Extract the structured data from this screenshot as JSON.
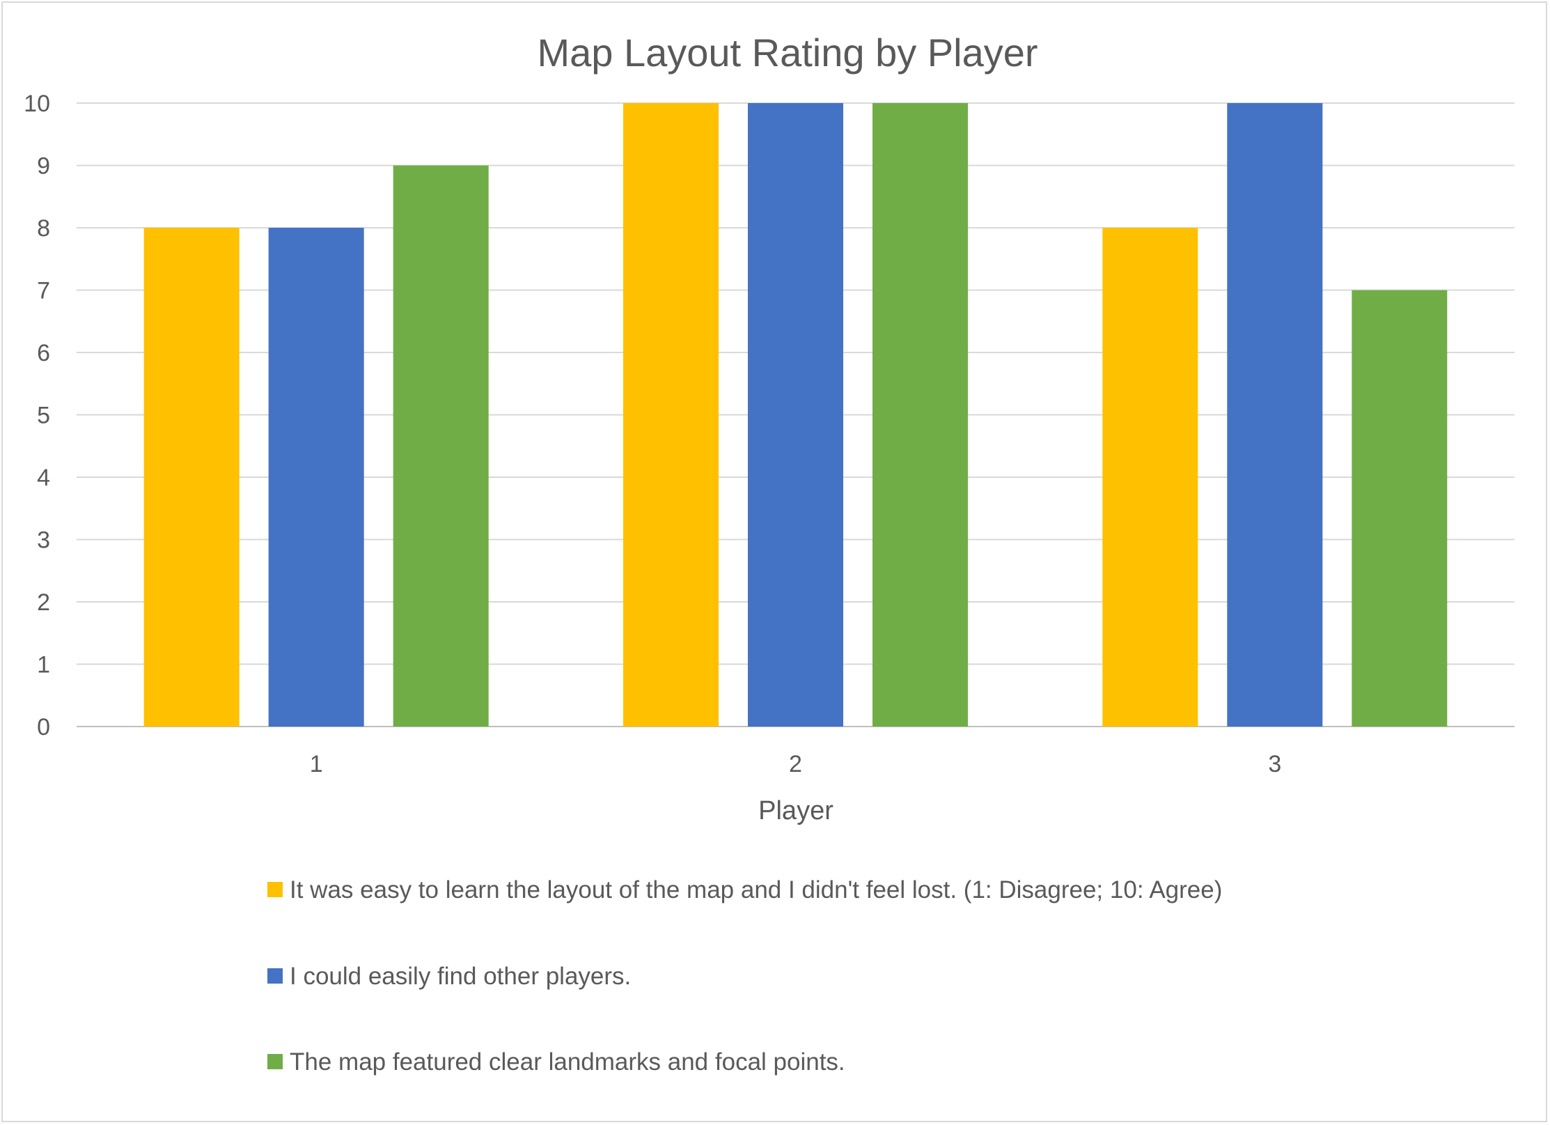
{
  "chart_data": {
    "type": "bar",
    "title": "Map Layout Rating by Player",
    "xlabel": "Player",
    "ylabel": "",
    "categories": [
      "1",
      "2",
      "3"
    ],
    "ylim": [
      0,
      10
    ],
    "yticks": [
      0,
      1,
      2,
      3,
      4,
      5,
      6,
      7,
      8,
      9,
      10
    ],
    "grid": true,
    "legend_position": "bottom",
    "series": [
      {
        "name": "It was easy to learn the layout of the map and I didn't feel lost. (1: Disagree; 10: Agree)",
        "color": "#FFC000",
        "values": [
          8,
          10,
          8
        ]
      },
      {
        "name": "I could easily find other players.",
        "color": "#4472C4",
        "values": [
          8,
          10,
          10
        ]
      },
      {
        "name": "The map featured clear landmarks and focal points.",
        "color": "#70AD47",
        "values": [
          9,
          10,
          7
        ]
      }
    ]
  }
}
